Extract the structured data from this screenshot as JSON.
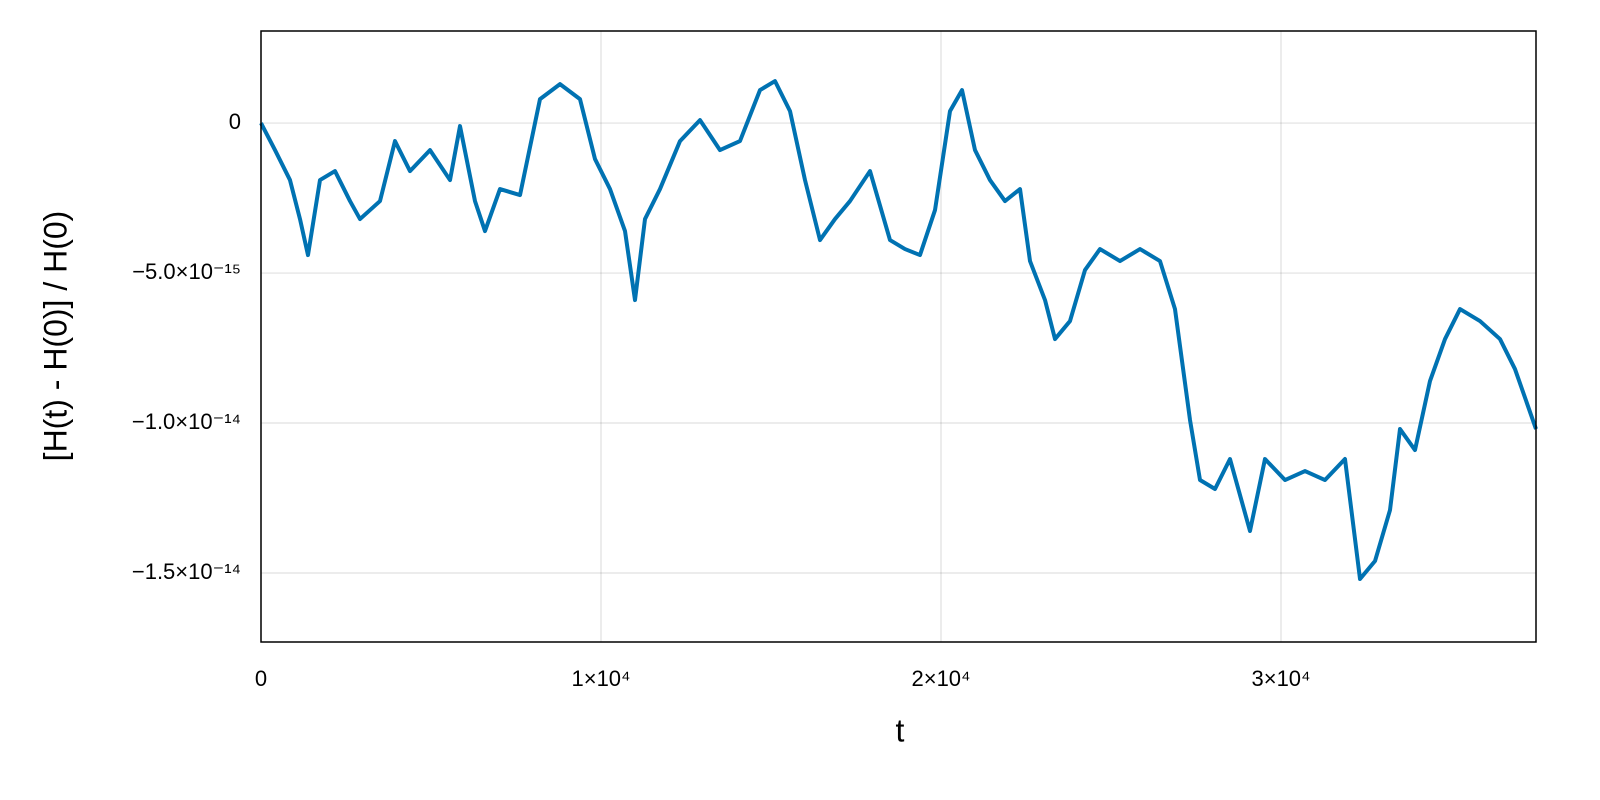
{
  "chart_data": {
    "type": "line",
    "x_label": "t",
    "y_label": "[H(t) - H(0)] / H(0)",
    "xlim": [
      0,
      37500
    ],
    "ylim": [
      -1.73e-14,
      3.07e-15
    ],
    "xticks": [
      0,
      {
        "value": 10000,
        "label": "1×10⁴"
      },
      {
        "value": 20000,
        "label": "2×10⁴"
      },
      {
        "value": 30000,
        "label": "3×10⁴"
      }
    ],
    "yticks": [
      0,
      {
        "value": -5e-15,
        "label": "−5.0×10⁻¹⁵"
      },
      {
        "value": -1e-14,
        "label": "−1.0×10⁻¹⁴"
      },
      {
        "value": -1.5e-14,
        "label": "−1.5×10⁻¹⁴"
      }
    ],
    "grid": true,
    "series": [
      {
        "color": "#0072b2",
        "x": [
          0,
          412,
          853,
          1147,
          1382,
          1735,
          2176,
          2618,
          2912,
          3500,
          3941,
          4382,
          4971,
          5559,
          5853,
          6294,
          6588,
          7029,
          7618,
          8206,
          8794,
          9382,
          9824,
          10265,
          10706,
          11000,
          11294,
          11735,
          12324,
          12912,
          13500,
          14088,
          14676,
          15118,
          15559,
          16000,
          16441,
          16882,
          17324,
          17912,
          18500,
          18941,
          19382,
          19824,
          20265,
          20618,
          21000,
          21441,
          21882,
          22324,
          22618,
          23059,
          23353,
          23794,
          24235,
          24676,
          25265,
          25853,
          26441,
          26882,
          27324,
          27618,
          28059,
          28500,
          29088,
          29529,
          30118,
          30706,
          31294,
          31882,
          32324,
          32765,
          33206,
          33500,
          33941,
          34382,
          34824,
          35265,
          35853,
          36441,
          36882,
          37500
        ],
        "values": [
          0,
          -9e-16,
          -1.9e-15,
          -3.2e-15,
          -4.4e-15,
          -1.9e-15,
          -1.6e-15,
          -2.6e-15,
          -3.2e-15,
          -2.6e-15,
          -6e-16,
          -1.6e-15,
          -9e-16,
          -1.9e-15,
          -1e-16,
          -2.6e-15,
          -3.6e-15,
          -2.2e-15,
          -2.4e-15,
          8e-16,
          1.3e-15,
          8e-16,
          -1.2e-15,
          -2.2e-15,
          -3.6e-15,
          -5.9e-15,
          -3.2e-15,
          -2.2e-15,
          -6e-16,
          1e-16,
          -9e-16,
          -6e-16,
          1.1e-15,
          1.4e-15,
          4e-16,
          -1.9e-15,
          -3.9e-15,
          -3.2e-15,
          -2.6e-15,
          -1.6e-15,
          -3.9e-15,
          -4.2e-15,
          -4.4e-15,
          -2.9e-15,
          4e-16,
          1.1e-15,
          -9e-16,
          -1.9e-15,
          -2.6e-15,
          -2.2e-15,
          -4.6e-15,
          -5.9e-15,
          -7.2e-15,
          -6.6e-15,
          -4.9e-15,
          -4.2e-15,
          -4.6e-15,
          -4.2e-15,
          -4.6e-15,
          -6.2e-15,
          -9.9e-15,
          -1.19e-14,
          -1.22e-14,
          -1.12e-14,
          -1.36e-14,
          -1.12e-14,
          -1.19e-14,
          -1.16e-14,
          -1.19e-14,
          -1.12e-14,
          -1.52e-14,
          -1.46e-14,
          -1.29e-14,
          -1.02e-14,
          -1.09e-14,
          -8.6e-15,
          -7.2e-15,
          -6.2e-15,
          -6.6e-15,
          -7.2e-15,
          -8.2e-15,
          -1.02e-14
        ]
      }
    ]
  }
}
